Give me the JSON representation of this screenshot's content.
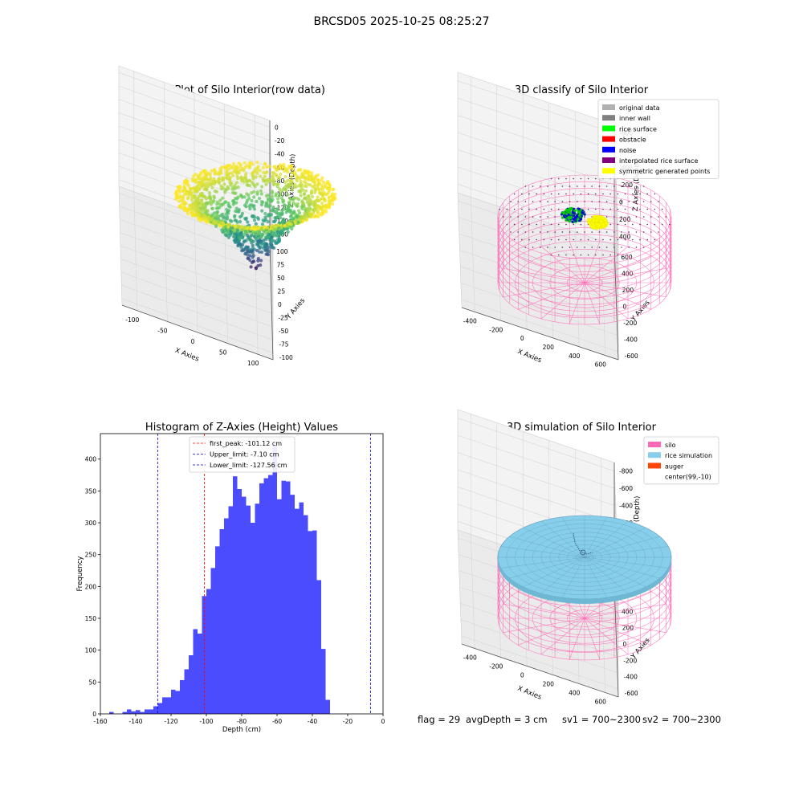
{
  "figure": {
    "suptitle": "BRCSD05 2025-10-25 08:25:27",
    "footer": {
      "flag": "flag = 29",
      "avg_depth": "avgDepth = 3 cm",
      "sv1": "sv1 = 700~2300",
      "sv2": "sv2 = 700~2300"
    }
  },
  "colors": {
    "histogram_bar": "#4c4cff",
    "first_peak_line": "#ff0000",
    "limit_line": "#0000cc",
    "silo_wire": "#ff69b4",
    "rice_simulation": "#87ceeb",
    "auger": "#ff4500",
    "viridis": [
      "#440154",
      "#3b528b",
      "#21918c",
      "#5ec962",
      "#fde725"
    ]
  },
  "chart_data": [
    {
      "type": "scatter",
      "projection": "3d",
      "title": "3D Plot of Silo Interior(row data)",
      "xlabel": "X Axies",
      "ylabel": "Y Axies",
      "zlabel": "Z Axies (Depth)",
      "xticks": [
        "-100",
        "-50",
        "0",
        "50",
        "100"
      ],
      "yticks": [
        "-100",
        "-75",
        "-50",
        "-25",
        "0",
        "25",
        "50",
        "75",
        "100"
      ],
      "zticks": [
        "0",
        "-20",
        "-40",
        "-60",
        "-80",
        "-100",
        "-120",
        "-140",
        "-160"
      ],
      "colormap": "viridis"
    },
    {
      "type": "scatter",
      "projection": "3d",
      "title": "3D classify of Silo Interior",
      "xlabel": "X Axies",
      "ylabel": "Y Axies",
      "zlabel": "Z Axies (Depth)",
      "xticks": [
        "-400",
        "-200",
        "0",
        "200",
        "400",
        "600"
      ],
      "yticks": [
        "-600",
        "-400",
        "-200",
        "0",
        "200",
        "400",
        "600"
      ],
      "zticks": [
        "-800",
        "-600",
        "-400",
        "-200",
        "0",
        "200",
        "400"
      ],
      "legend_position": "upper-right",
      "legend": [
        {
          "label": "original data",
          "color": "#b0b0b0"
        },
        {
          "label": "inner wall",
          "color": "#808080"
        },
        {
          "label": "rice surface",
          "color": "#00ff00"
        },
        {
          "label": "obstacle",
          "color": "#ff0000"
        },
        {
          "label": "noise",
          "color": "#0000ff"
        },
        {
          "label": "interpolated rice surface",
          "color": "#800080"
        },
        {
          "label": "symmetric generated points",
          "color": "#ffff00"
        }
      ]
    },
    {
      "type": "bar",
      "title": "Histogram of Z-Axies (Height) Values",
      "xlabel": "Depth (cm)",
      "ylabel": "Frequency",
      "xlim": [
        -160,
        0
      ],
      "ylim": [
        0,
        440
      ],
      "grid": false,
      "xticks": [
        -160,
        -140,
        -120,
        -100,
        -80,
        -60,
        -40,
        -20,
        0
      ],
      "yticks": [
        0,
        50,
        100,
        150,
        200,
        250,
        300,
        350,
        400
      ],
      "bin_start": -155,
      "bin_width": 2.5,
      "values": [
        3,
        0,
        0,
        3,
        7,
        4,
        6,
        3,
        7,
        7,
        12,
        17,
        26,
        26,
        38,
        36,
        53,
        70,
        92,
        133,
        126,
        185,
        196,
        229,
        263,
        290,
        307,
        326,
        373,
        353,
        341,
        327,
        300,
        330,
        362,
        370,
        375,
        423,
        337,
        366,
        365,
        344,
        322,
        332,
        312,
        287,
        288,
        210,
        102,
        22
      ],
      "legend_position": "top-center",
      "reference_lines": [
        {
          "label": "first_peak: -101.12 cm",
          "x": -101.12,
          "color": "#ff0000"
        },
        {
          "label": "Upper_limit: -7.10 cm",
          "x": -7.1,
          "color": "#0000cc"
        },
        {
          "label": "Lower_limit: -127.56 cm",
          "x": -127.56,
          "color": "#0000cc"
        }
      ]
    },
    {
      "type": "scatter",
      "projection": "3d",
      "title": "3D simulation of Silo Interior",
      "xlabel": "X Axies",
      "ylabel": "Y Axies",
      "zlabel": "Z Axies (Depth)",
      "xticks": [
        "-400",
        "-200",
        "0",
        "200",
        "400",
        "600"
      ],
      "yticks": [
        "-600",
        "-400",
        "-200",
        "0",
        "200",
        "400",
        "600"
      ],
      "zticks": [
        "-800",
        "-600",
        "-400",
        "-200",
        "0",
        "200",
        "400"
      ],
      "legend_position": "upper-right",
      "legend": [
        {
          "label": "silo",
          "color": "#ff69b4"
        },
        {
          "label": "rice simulation",
          "color": "#87ceeb"
        },
        {
          "label": "auger",
          "color": "#ff4500"
        },
        {
          "label": "center(99,-10)",
          "color": ""
        }
      ]
    }
  ]
}
